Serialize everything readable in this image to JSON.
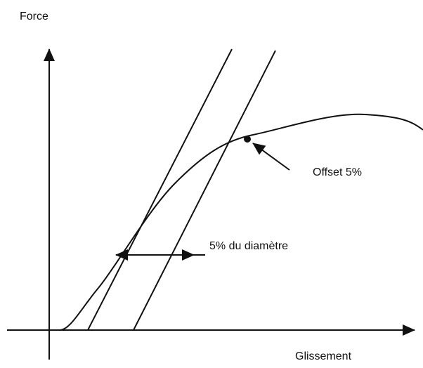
{
  "labels": {
    "y_axis": "Force",
    "x_axis": "Glissement",
    "offset": "Offset 5%",
    "dimension": "5% du diamètre"
  }
}
